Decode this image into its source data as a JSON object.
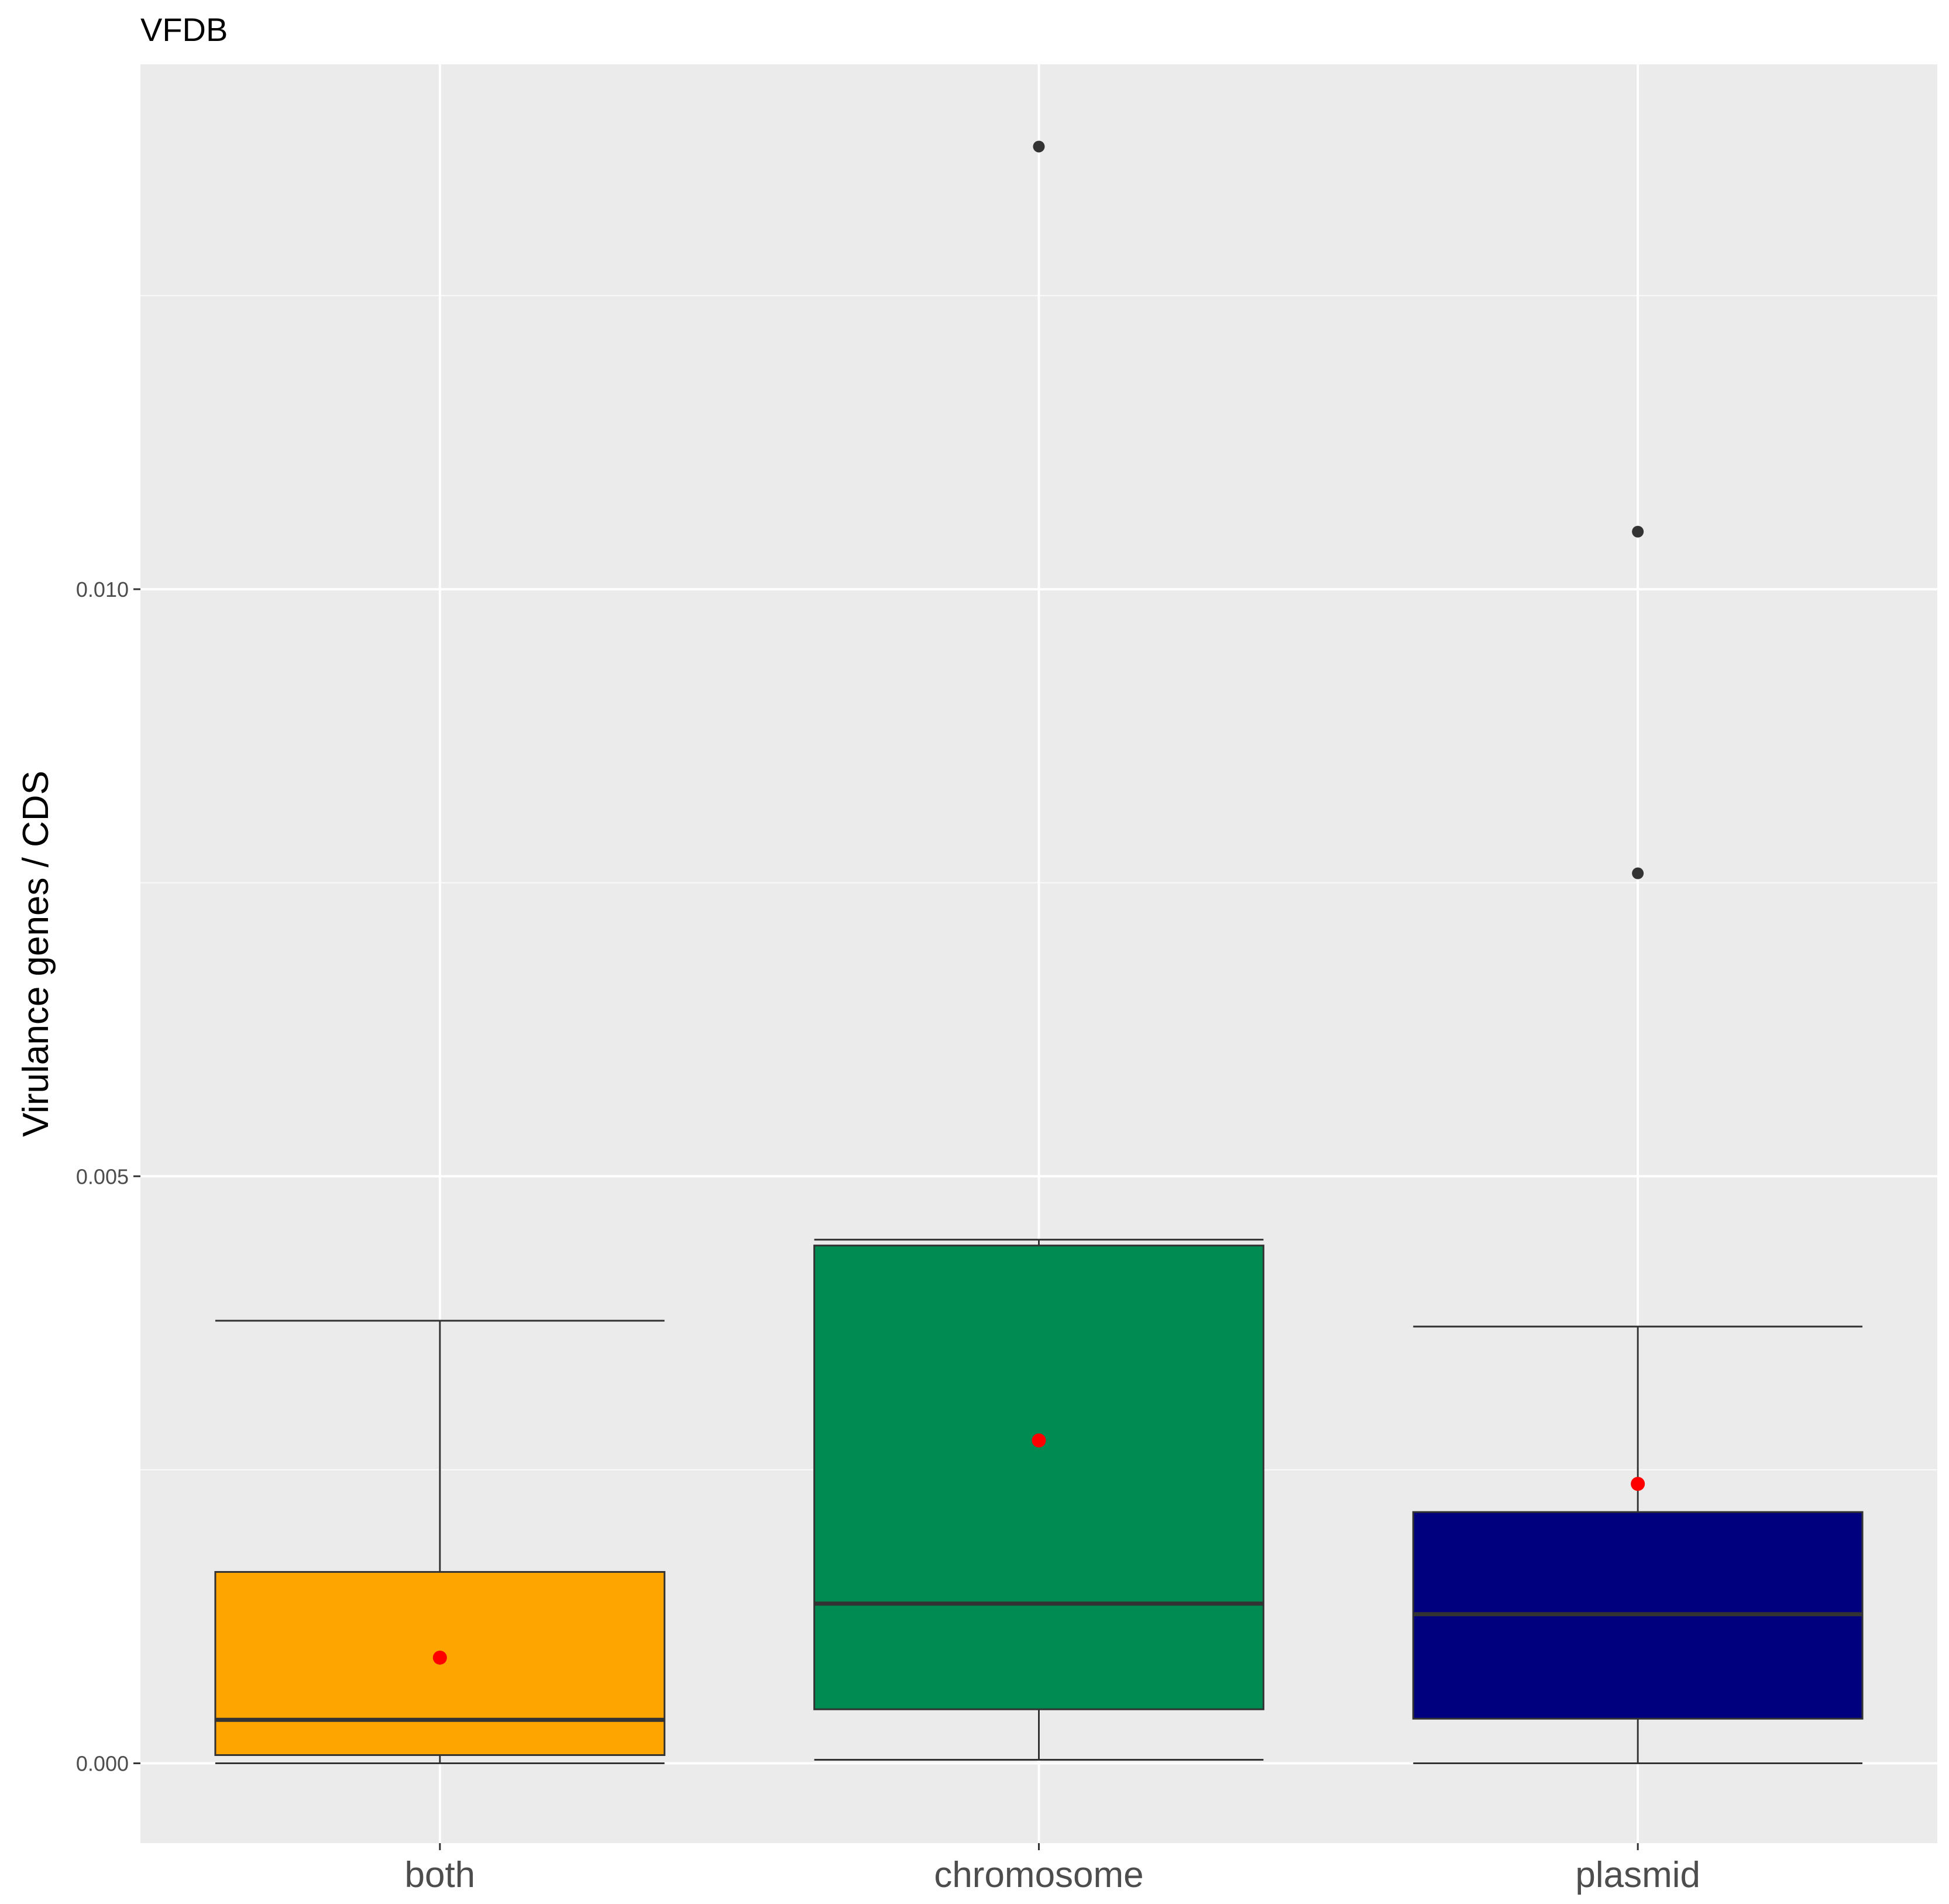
{
  "chart_data": {
    "type": "box",
    "title": "VFDB",
    "xlabel": "",
    "ylabel": "Virulance genes / CDS",
    "ylim": [
      -0.00068,
      0.01447
    ],
    "y_ticks": [
      0.0,
      0.005,
      0.01
    ],
    "y_tick_labels": [
      "0.000",
      "0.005",
      "0.010"
    ],
    "categories": [
      "both",
      "chromosome",
      "plasmid"
    ],
    "boxes": [
      {
        "category": "both",
        "color": "#FFA500",
        "whisker_low": 0.0,
        "q1": 7e-05,
        "median": 0.00037,
        "q3": 0.00163,
        "whisker_high": 0.00377,
        "mean": 0.0009,
        "outliers": []
      },
      {
        "category": "chromosome",
        "color": "#008B53",
        "whisker_low": 3e-05,
        "q1": 0.00046,
        "median": 0.00136,
        "q3": 0.00441,
        "whisker_high": 0.00446,
        "mean": 0.00275,
        "outliers": [
          0.01377
        ]
      },
      {
        "category": "plasmid",
        "color": "#00007F",
        "whisker_low": 0.0,
        "q1": 0.00038,
        "median": 0.00127,
        "q3": 0.00214,
        "whisker_high": 0.00372,
        "mean": 0.00238,
        "outliers": [
          0.01049,
          0.00758
        ]
      }
    ],
    "mean_marker_color": "#FF0000",
    "outlier_color": "#333333",
    "panel_background": "#EBEBEB",
    "grid": true,
    "legend": "none"
  }
}
